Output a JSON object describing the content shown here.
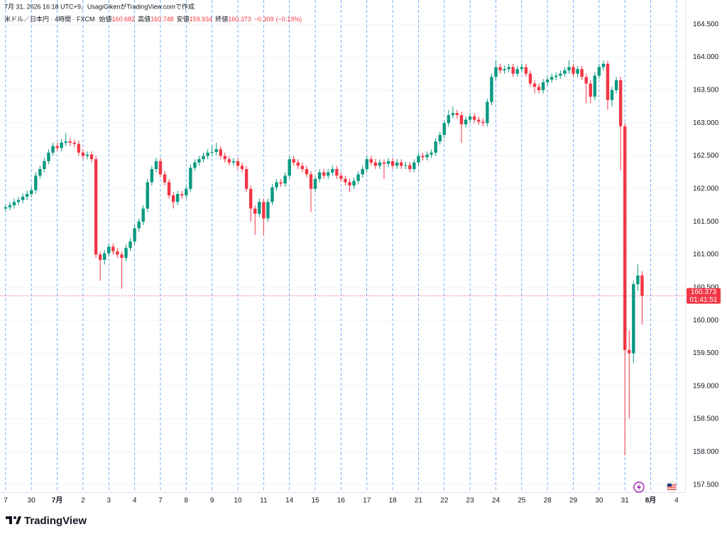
{
  "chart_data": {
    "type": "candlestick",
    "caption": "7月 31, 2026 16:18 UTC+9、UsagiGikenがTradingView.comで作成",
    "title": "米ドル／日本円 · 4時間 · FXCM",
    "legend_labels": {
      "open": "始値",
      "high": "高値",
      "low": "安値",
      "close": "終値"
    },
    "change": {
      "value": -0.309,
      "label": "−0.309"
    },
    "change_pct": {
      "value": -0.19,
      "label": "(−0.19%)"
    },
    "countdown": "01:41:51",
    "up_color": "#089981",
    "down_color": "#f23645",
    "grid": true,
    "xlim": [
      -1.3,
      158
    ],
    "ylim": [
      157.4,
      164.87
    ],
    "yticks": [
      {
        "value": 157.5,
        "label": "157.500"
      },
      {
        "value": 158,
        "label": "158.000"
      },
      {
        "value": 158.5,
        "label": "158.500"
      },
      {
        "value": 159,
        "label": "159.000"
      },
      {
        "value": 159.5,
        "label": "159.500"
      },
      {
        "value": 160,
        "label": "160.000"
      },
      {
        "value": 160.5,
        "label": "160.500"
      },
      {
        "value": 161,
        "label": "161.000"
      },
      {
        "value": 161.5,
        "label": "161.500"
      },
      {
        "value": 162,
        "label": "162.000"
      },
      {
        "value": 162.5,
        "label": "162.500"
      },
      {
        "value": 163,
        "label": "163.000"
      },
      {
        "value": 163.5,
        "label": "163.500"
      },
      {
        "value": 164,
        "label": "164.000"
      },
      {
        "value": 164.5,
        "label": "164.500"
      }
    ],
    "xticks": [
      {
        "value": 0,
        "label": "7"
      },
      {
        "value": 6,
        "label": "30"
      },
      {
        "value": 12,
        "label": "7月"
      },
      {
        "value": 18,
        "label": "2"
      },
      {
        "value": 24,
        "label": "3"
      },
      {
        "value": 30,
        "label": "4"
      },
      {
        "value": 36,
        "label": "7"
      },
      {
        "value": 42,
        "label": "8"
      },
      {
        "value": 48,
        "label": "9"
      },
      {
        "value": 54,
        "label": "10"
      },
      {
        "value": 60,
        "label": "11"
      },
      {
        "value": 66,
        "label": "14"
      },
      {
        "value": 72,
        "label": "15"
      },
      {
        "value": 78,
        "label": "16"
      },
      {
        "value": 84,
        "label": "17"
      },
      {
        "value": 90,
        "label": "18"
      },
      {
        "value": 96,
        "label": "21"
      },
      {
        "value": 102,
        "label": "22"
      },
      {
        "value": 108,
        "label": "23"
      },
      {
        "value": 114,
        "label": "24"
      },
      {
        "value": 120,
        "label": "25"
      },
      {
        "value": 126,
        "label": "28"
      },
      {
        "value": 132,
        "label": "29"
      },
      {
        "value": 138,
        "label": "30"
      },
      {
        "value": 144,
        "label": "31"
      },
      {
        "value": 150,
        "label": "8月"
      },
      {
        "value": 156,
        "label": "4"
      }
    ],
    "x": [
      0,
      1,
      2,
      3,
      4,
      5,
      6,
      7,
      8,
      9,
      10,
      11,
      12,
      13,
      14,
      15,
      16,
      17,
      18,
      19,
      20,
      21,
      22,
      23,
      24,
      25,
      26,
      27,
      28,
      29,
      30,
      31,
      32,
      33,
      34,
      35,
      36,
      37,
      38,
      39,
      40,
      41,
      42,
      43,
      44,
      45,
      46,
      47,
      48,
      49,
      50,
      51,
      52,
      53,
      54,
      55,
      56,
      57,
      58,
      59,
      60,
      61,
      62,
      63,
      64,
      65,
      66,
      67,
      68,
      69,
      70,
      71,
      72,
      73,
      74,
      75,
      76,
      77,
      78,
      79,
      80,
      81,
      82,
      83,
      84,
      85,
      86,
      87,
      88,
      89,
      90,
      91,
      92,
      93,
      94,
      95,
      96,
      97,
      98,
      99,
      100,
      101,
      102,
      103,
      104,
      105,
      106,
      107,
      108,
      109,
      110,
      111,
      112,
      113,
      114,
      115,
      116,
      117,
      118,
      119,
      120,
      121,
      122,
      123,
      124,
      125,
      126,
      127,
      128,
      129,
      130,
      131,
      132,
      133,
      134,
      135,
      136,
      137,
      138,
      139,
      140,
      141,
      142,
      143,
      144,
      145,
      146,
      147,
      148
    ],
    "open": [
      161.7,
      161.72,
      161.75,
      161.8,
      161.83,
      161.88,
      161.92,
      161.98,
      162.2,
      162.3,
      162.42,
      162.55,
      162.65,
      162.62,
      162.7,
      162.72,
      162.7,
      162.68,
      162.55,
      162.5,
      162.52,
      162.45,
      161.0,
      160.92,
      161.02,
      161.12,
      161.05,
      161.0,
      160.95,
      161.1,
      161.2,
      161.4,
      161.5,
      161.7,
      162.1,
      162.3,
      162.42,
      162.22,
      162.1,
      161.9,
      161.8,
      161.92,
      161.9,
      162.0,
      162.32,
      162.4,
      162.45,
      162.5,
      162.55,
      162.56,
      162.6,
      162.5,
      162.45,
      162.4,
      162.42,
      162.35,
      162.3,
      162.0,
      161.7,
      161.62,
      161.8,
      161.55,
      161.8,
      162.02,
      162.1,
      162.08,
      162.2,
      162.45,
      162.4,
      162.35,
      162.3,
      162.22,
      162.0,
      162.15,
      162.25,
      162.2,
      162.25,
      162.3,
      162.2,
      162.15,
      162.1,
      162.05,
      162.12,
      162.22,
      162.3,
      162.45,
      162.4,
      162.35,
      162.4,
      162.38,
      162.42,
      162.35,
      162.4,
      162.35,
      162.36,
      162.3,
      162.4,
      162.5,
      162.48,
      162.52,
      162.55,
      162.72,
      162.82,
      163.0,
      163.12,
      163.15,
      163.12,
      162.98,
      163.05,
      163.1,
      163.05,
      163.02,
      163.0,
      163.32,
      163.7,
      163.85,
      163.8,
      163.82,
      163.85,
      163.75,
      163.82,
      163.85,
      163.75,
      163.6,
      163.55,
      163.5,
      163.62,
      163.66,
      163.7,
      163.72,
      163.75,
      163.8,
      163.85,
      163.75,
      163.82,
      163.7,
      163.6,
      163.4,
      163.72,
      163.85,
      163.9,
      163.35,
      163.5,
      163.65,
      162.95,
      159.55,
      159.5,
      160.55,
      160.682
    ],
    "high": [
      161.77,
      161.8,
      161.85,
      161.88,
      161.93,
      161.97,
      162.03,
      162.25,
      162.35,
      162.47,
      162.6,
      162.7,
      162.7,
      162.75,
      162.85,
      162.77,
      162.75,
      162.73,
      162.6,
      162.57,
      162.57,
      162.5,
      161.05,
      161.07,
      161.17,
      161.17,
      161.1,
      161.05,
      161.15,
      161.25,
      161.45,
      161.55,
      161.75,
      162.15,
      162.35,
      162.47,
      162.47,
      162.27,
      162.15,
      161.95,
      161.97,
      161.97,
      162.05,
      162.37,
      162.45,
      162.5,
      162.55,
      162.6,
      162.65,
      162.7,
      162.65,
      162.55,
      162.5,
      162.47,
      162.47,
      162.4,
      162.35,
      162.05,
      161.75,
      161.85,
      161.85,
      161.85,
      162.07,
      162.15,
      162.15,
      162.25,
      162.5,
      162.5,
      162.45,
      162.4,
      162.35,
      162.27,
      162.2,
      162.3,
      162.3,
      162.3,
      162.35,
      162.35,
      162.25,
      162.2,
      162.15,
      162.17,
      162.27,
      162.35,
      162.5,
      162.5,
      162.45,
      162.45,
      162.45,
      162.47,
      162.47,
      162.45,
      162.45,
      162.41,
      162.41,
      162.45,
      162.55,
      162.55,
      162.57,
      162.6,
      162.77,
      162.87,
      163.05,
      163.2,
      163.25,
      163.2,
      163.17,
      163.1,
      163.15,
      163.15,
      163.1,
      163.07,
      163.37,
      163.75,
      163.95,
      163.9,
      163.87,
      163.9,
      163.9,
      163.87,
      163.9,
      163.9,
      163.8,
      163.65,
      163.6,
      163.67,
      163.71,
      163.75,
      163.77,
      163.8,
      163.85,
      163.95,
      163.9,
      163.87,
      163.87,
      163.75,
      163.65,
      163.77,
      163.9,
      163.95,
      163.95,
      163.55,
      163.7,
      163.7,
      163.0,
      159.85,
      160.6,
      160.85,
      160.748
    ],
    "low": [
      161.65,
      161.67,
      161.7,
      161.75,
      161.78,
      161.83,
      161.87,
      161.93,
      162.15,
      162.25,
      162.37,
      162.5,
      162.57,
      162.57,
      162.65,
      162.65,
      162.63,
      162.5,
      162.45,
      162.45,
      162.4,
      160.95,
      160.6,
      160.85,
      160.97,
      161.0,
      160.95,
      160.48,
      160.9,
      161.05,
      161.15,
      161.35,
      161.45,
      161.65,
      162.05,
      162.25,
      162.17,
      162.05,
      161.85,
      161.7,
      161.75,
      161.85,
      161.85,
      161.95,
      162.27,
      162.35,
      162.4,
      162.45,
      162.5,
      162.51,
      162.45,
      162.4,
      162.35,
      162.35,
      162.3,
      162.25,
      161.95,
      161.5,
      161.3,
      161.57,
      161.3,
      161.5,
      161.75,
      161.97,
      162.03,
      162.03,
      162.15,
      162.35,
      162.3,
      162.25,
      162.17,
      161.65,
      161.95,
      162.1,
      162.15,
      162.15,
      162.2,
      162.15,
      162.1,
      162.05,
      161.95,
      162.0,
      162.07,
      162.17,
      162.25,
      162.35,
      162.3,
      162.3,
      162.15,
      162.33,
      162.3,
      162.3,
      162.3,
      162.3,
      162.25,
      162.25,
      162.35,
      162.43,
      162.43,
      162.47,
      162.5,
      162.67,
      162.77,
      162.95,
      163.07,
      163.07,
      162.7,
      162.93,
      163.0,
      163.0,
      162.97,
      162.95,
      162.95,
      163.27,
      163.65,
      163.75,
      163.75,
      163.77,
      163.7,
      163.7,
      163.77,
      163.7,
      163.55,
      163.45,
      163.45,
      163.45,
      163.57,
      163.61,
      163.65,
      163.67,
      163.7,
      163.75,
      163.7,
      163.7,
      163.65,
      163.3,
      163.3,
      163.35,
      163.67,
      163.8,
      163.2,
      163.25,
      163.45,
      162.28,
      157.95,
      158.5,
      159.35,
      160.45,
      159.934
    ],
    "close": [
      161.72,
      161.75,
      161.8,
      161.83,
      161.88,
      161.92,
      161.98,
      162.2,
      162.3,
      162.42,
      162.55,
      162.65,
      162.62,
      162.7,
      162.72,
      162.7,
      162.68,
      162.55,
      162.5,
      162.52,
      162.45,
      161.0,
      160.92,
      161.02,
      161.12,
      161.05,
      161.0,
      160.95,
      161.1,
      161.2,
      161.4,
      161.5,
      161.7,
      162.1,
      162.3,
      162.42,
      162.22,
      162.1,
      161.9,
      161.8,
      161.92,
      161.9,
      162.0,
      162.32,
      162.4,
      162.45,
      162.5,
      162.55,
      162.56,
      162.6,
      162.5,
      162.45,
      162.4,
      162.42,
      162.35,
      162.3,
      162.0,
      161.7,
      161.62,
      161.8,
      161.55,
      161.8,
      162.02,
      162.1,
      162.08,
      162.2,
      162.45,
      162.4,
      162.35,
      162.3,
      162.22,
      162.0,
      162.15,
      162.25,
      162.2,
      162.25,
      162.3,
      162.2,
      162.15,
      162.1,
      162.05,
      162.12,
      162.22,
      162.3,
      162.45,
      162.4,
      162.35,
      162.4,
      162.38,
      162.42,
      162.35,
      162.4,
      162.35,
      162.36,
      162.3,
      162.4,
      162.5,
      162.48,
      162.52,
      162.55,
      162.72,
      162.82,
      163.0,
      163.12,
      163.15,
      163.12,
      162.98,
      163.05,
      163.1,
      163.05,
      163.02,
      163.0,
      163.32,
      163.7,
      163.85,
      163.8,
      163.82,
      163.85,
      163.75,
      163.82,
      163.85,
      163.75,
      163.6,
      163.55,
      163.5,
      163.62,
      163.66,
      163.7,
      163.72,
      163.75,
      163.8,
      163.85,
      163.75,
      163.82,
      163.7,
      163.6,
      163.4,
      163.72,
      163.85,
      163.9,
      163.35,
      163.5,
      163.65,
      162.95,
      159.55,
      159.5,
      160.55,
      160.682,
      160.373
    ]
  },
  "footer": {
    "brand": "TradingView"
  }
}
